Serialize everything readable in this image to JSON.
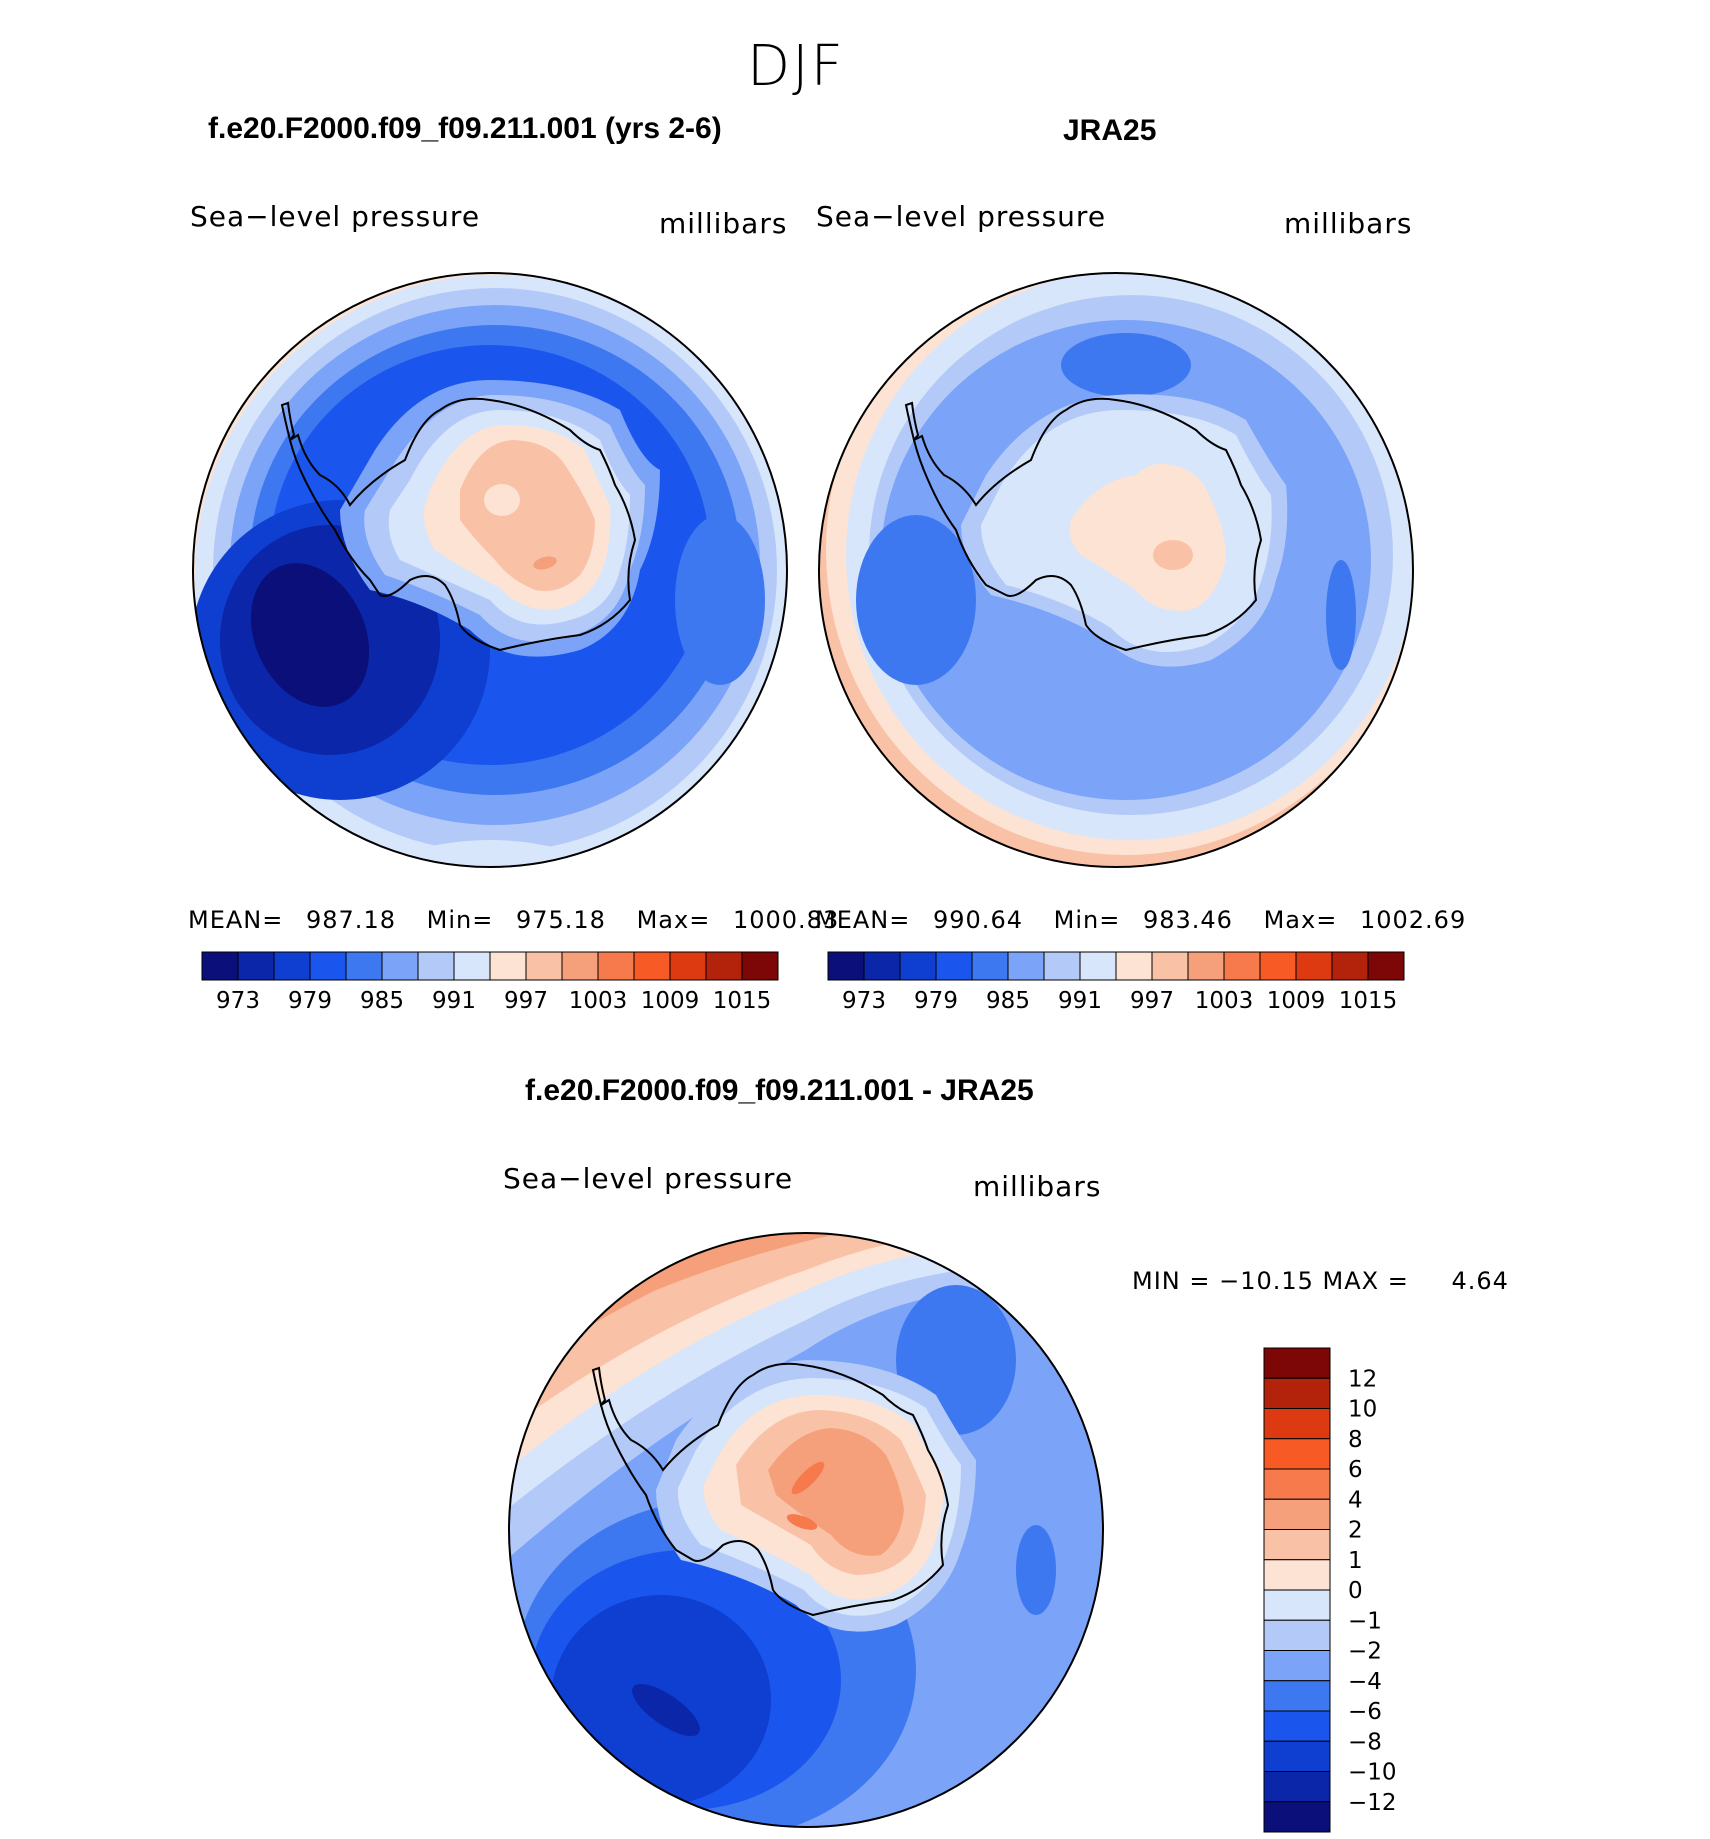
{
  "season": "DJF",
  "panels": [
    {
      "title": "f.e20.F2000.f09_f09.211.001 (yrs 2-6)",
      "variable": "Sea−level pressure",
      "units": "millibars",
      "stats": {
        "mean_label": "MEAN=",
        "mean": "987.18",
        "min_label": "Min=",
        "min": "975.18",
        "max_label": "Max=",
        "max": "1000.83"
      }
    },
    {
      "title": "JRA25",
      "variable": "Sea−level pressure",
      "units": "millibars",
      "stats": {
        "mean_label": "MEAN=",
        "mean": "990.64",
        "min_label": "Min=",
        "min": "983.46",
        "max_label": "Max=",
        "max": "1002.69"
      }
    },
    {
      "title": "f.e20.F2000.f09_f09.211.001 - JRA25",
      "variable": "Sea−level pressure",
      "units": "millibars",
      "minmax_text": "MIN = −10.15 MAX =",
      "max_value": "4.64"
    }
  ],
  "abs_colorbar": {
    "colors": [
      "#0a0f7a",
      "#0b26a8",
      "#0e3fd0",
      "#1a56ee",
      "#3d78f0",
      "#7ba3f7",
      "#b3caf9",
      "#d8e6fb",
      "#fde3d3",
      "#f9c2a6",
      "#f5a07a",
      "#f67a4c",
      "#f85a25",
      "#dd3a12",
      "#b3230b",
      "#7d0606"
    ],
    "ticks": [
      "973",
      "979",
      "985",
      "991",
      "997",
      "1003",
      "1009",
      "1015"
    ]
  },
  "diff_colorbar": {
    "colors": [
      "#0a0f7a",
      "#0b26a8",
      "#0e3fd0",
      "#1a56ee",
      "#3d78f0",
      "#7ba3f7",
      "#b3caf9",
      "#d8e6fb",
      "#fde3d3",
      "#f9c2a6",
      "#f5a07a",
      "#f67a4c",
      "#f85a25",
      "#dd3a12",
      "#b3230b",
      "#7d0606"
    ],
    "ticks": [
      "12",
      "10",
      "8",
      "6",
      "4",
      "2",
      "1",
      "0",
      "−1",
      "−2",
      "−4",
      "−6",
      "−8",
      "−10",
      "−12"
    ]
  }
}
